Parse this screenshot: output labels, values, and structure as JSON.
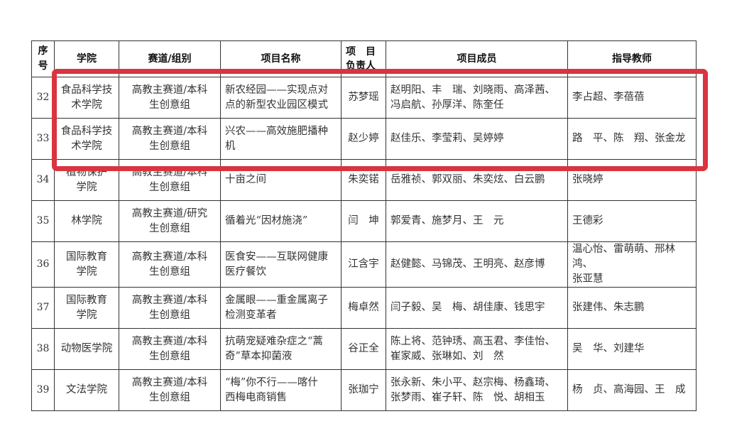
{
  "table": {
    "headers": [
      "序\n号",
      "学院",
      "赛道/组别",
      "项目名称",
      "项　目\n负责人",
      "项目成员",
      "指导教师"
    ],
    "rows": [
      [
        "32",
        "食品科学技\n术学院",
        "高教主赛道/本科\n生创意组",
        "新农经园——实现点对\n点的新型农业园区模式",
        "苏梦瑶",
        "赵明阳、丰　瑞、刘晓雨、高泽茜、\n冯启航、孙厚洋、陈奎任",
        "李占超、李蓓蓓"
      ],
      [
        "33",
        "食品科学技\n术学院",
        "高教主赛道/本科\n生创意组",
        "兴农——高效施肥播种\n机",
        "赵少婷",
        "赵佳乐、李莹莉、吴婷婷",
        "路　平、陈　翔、张金龙"
      ],
      [
        "34",
        "植物保护\n学院",
        "高教主赛道/本科\n生创意组",
        "十亩之间",
        "朱奕锘",
        "岳雅祯、郭双丽、朱奕炫、白云鹏",
        "张晓婷"
      ],
      [
        "35",
        "林学院",
        "高教主赛道/研究\n生创意组",
        "循着光“因材施浇”",
        "闫　坤",
        "郭爱青、施梦月、王　元",
        "王德彩"
      ],
      [
        "36",
        "国际教育\n学院",
        "高教主赛道/本科\n生创意组",
        "医食安——互联网健康\n医疗餐饮",
        "江含宇",
        "赵健懿、马锦茂、王明亮、赵彦博",
        "温心怡、雷萌萌、邢林鸿、\n张亚慧"
      ],
      [
        "37",
        "国际教育\n学院",
        "高教主赛道/本科\n生创意组",
        "金属眼——重金属离子\n检测变革者",
        "梅卓然",
        "闫子毅、吴　梅、胡佳康、钱思宇",
        "张建伟、朱志鹏"
      ],
      [
        "38",
        "动物医学院",
        "高教主赛道/本科\n生创意组",
        "抗萌宠疑难杂症之“蒿\n奇”草本抑菌液",
        "谷正全",
        "陈上将、范钟琇、高玉君、李佳怡、\n崔家威、张琳如、刘　然",
        "吴　华、刘建华"
      ],
      [
        "39",
        "文法学院",
        "高教主赛道/本科\n生创意组",
        "“梅”你不行——喀什\n西梅电商销售",
        "张珈宁",
        "张永新、朱小平、赵宗梅、杨鑫琦、\n张梦雨、崔子轩、陈　悦、胡相玉",
        "杨　贞、高海园、王　成"
      ]
    ],
    "highlighted_rows": [
      "32",
      "33"
    ]
  },
  "colors": {
    "highlight": "#d9343f",
    "border": "#333333"
  }
}
